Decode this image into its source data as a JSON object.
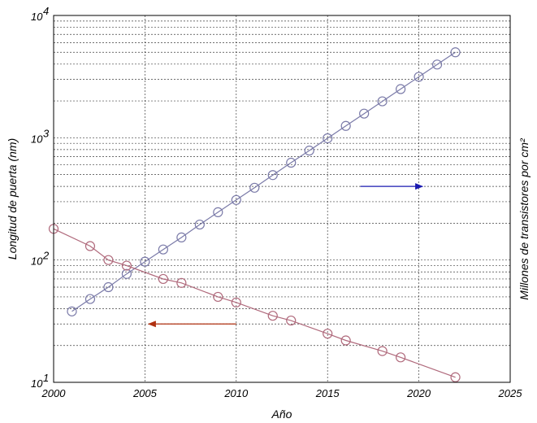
{
  "chart_data": {
    "type": "line",
    "xlabel": "Año",
    "ylabel_left": "Longitud de puerta (nm)",
    "ylabel_right": "Millones de transistores por cm²",
    "xlim": [
      2000,
      2025
    ],
    "ylim": [
      10,
      10000
    ],
    "yscale": "log",
    "grid": true,
    "x_ticks": [
      "2000",
      "2005",
      "2010",
      "2015",
      "2020",
      "2025"
    ],
    "y_ticks": [
      {
        "base": "10",
        "exp": "1"
      },
      {
        "base": "10",
        "exp": "2"
      },
      {
        "base": "10",
        "exp": "3"
      },
      {
        "base": "10",
        "exp": "4"
      }
    ],
    "series": [
      {
        "color": "#7a7aa8",
        "marker": "circle",
        "x": [
          2001,
          2002,
          2003,
          2004,
          2005,
          2006,
          2007,
          2008,
          2009,
          2010,
          2011,
          2012,
          2013,
          2014,
          2015,
          2016,
          2017,
          2018,
          2019,
          2020,
          2021,
          2022
        ],
        "values": [
          38,
          48,
          60,
          77,
          97,
          122,
          153,
          195,
          246,
          310,
          390,
          495,
          625,
          785,
          990,
          1250,
          1575,
          1985,
          2500,
          3150,
          3970,
          5000
        ]
      },
      {
        "color": "#b06a7c",
        "marker": "circle",
        "x": [
          2000,
          2002,
          2003,
          2004,
          2006,
          2007,
          2009,
          2010,
          2012,
          2013,
          2015,
          2016,
          2018,
          2019,
          2022
        ],
        "values": [
          180,
          130,
          100,
          90,
          70,
          65,
          50,
          45,
          35,
          32,
          25,
          22,
          18,
          16,
          11
        ]
      }
    ],
    "annotations": [
      {
        "type": "arrow",
        "color": "#1a1ab0",
        "from": [
          2016.8,
          400
        ],
        "to": [
          2020.2,
          400
        ],
        "meaning": "points to right axis"
      },
      {
        "type": "arrow",
        "color": "#b03010",
        "from": [
          2010,
          30
        ],
        "to": [
          2005.2,
          30
        ],
        "meaning": "points to left axis"
      }
    ]
  }
}
